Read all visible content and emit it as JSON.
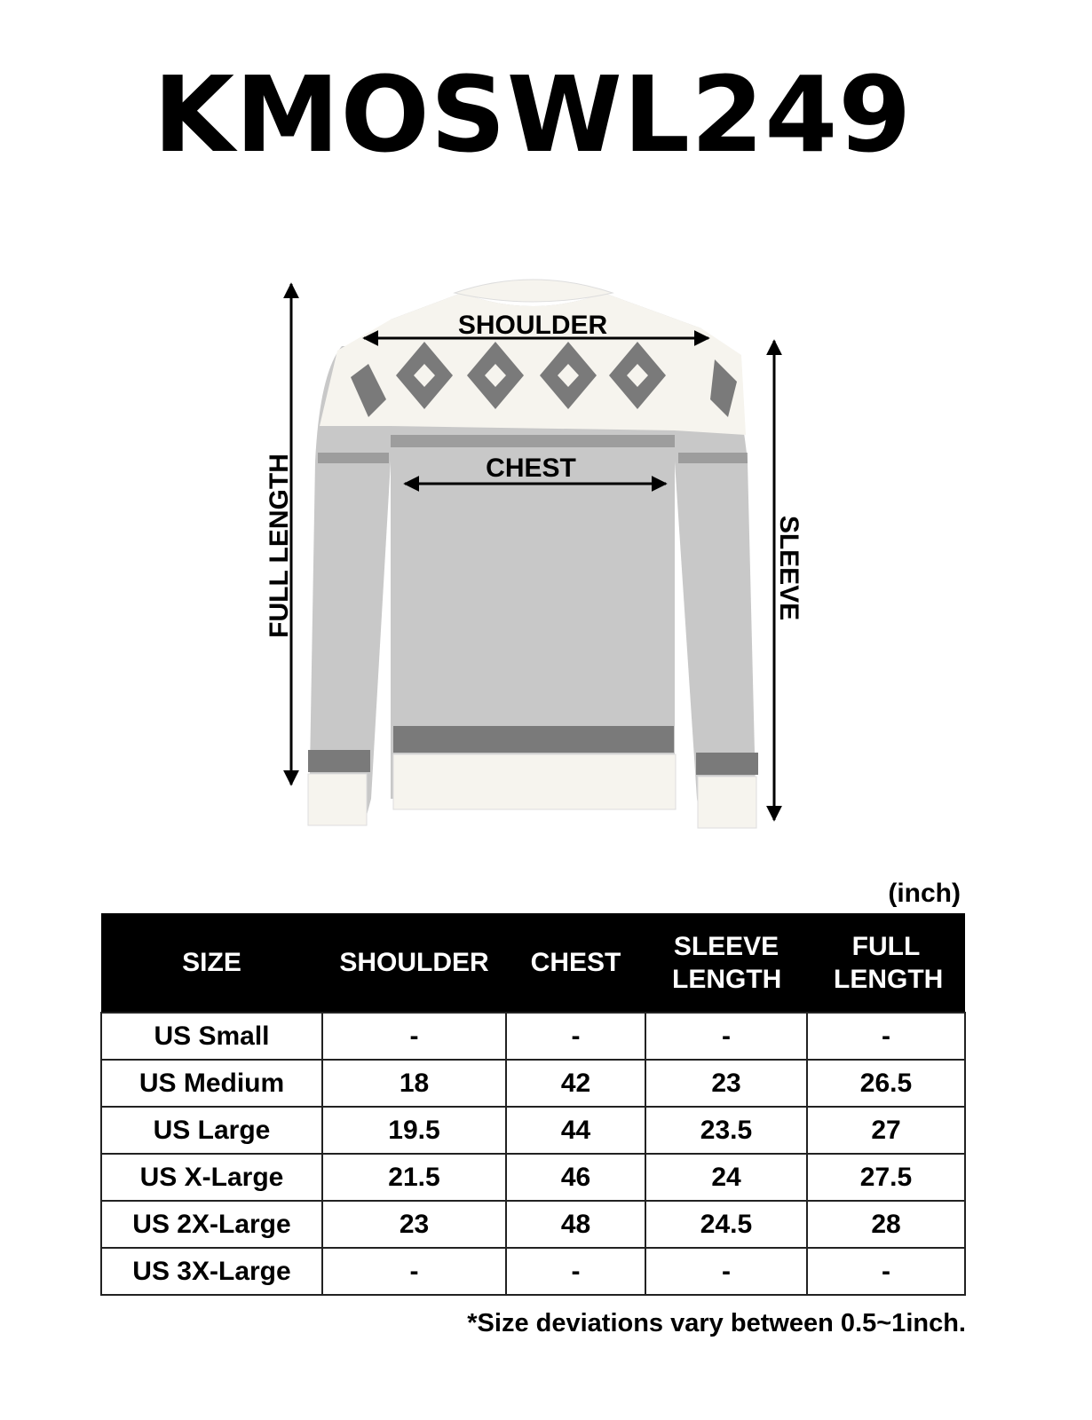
{
  "title": "KMOSWL249",
  "diagram_labels": {
    "shoulder": "SHOULDER",
    "chest": "CHEST",
    "full_length": "FULL LENGTH",
    "sleeve": "SLEEVE"
  },
  "unit": "(inch)",
  "table": {
    "headers": [
      "SIZE",
      "SHOULDER",
      "CHEST",
      "SLEEVE LENGTH",
      "FULL LENGTH"
    ],
    "rows": [
      [
        "US Small",
        "-",
        "-",
        "-",
        "-"
      ],
      [
        "US Medium",
        "18",
        "42",
        "23",
        "26.5"
      ],
      [
        "US Large",
        "19.5",
        "44",
        "23.5",
        "27"
      ],
      [
        "US X-Large",
        "21.5",
        "46",
        "24",
        "27.5"
      ],
      [
        "US 2X-Large",
        "23",
        "48",
        "24.5",
        "28"
      ],
      [
        "US 3X-Large",
        "-",
        "-",
        "-",
        "-"
      ]
    ]
  },
  "note": "*Size deviations vary between 0.5~1inch.",
  "colors": {
    "sweater_body": "#c8c8c8",
    "sweater_trim": "#f6f4ee",
    "pattern": "#7a7a7a"
  }
}
